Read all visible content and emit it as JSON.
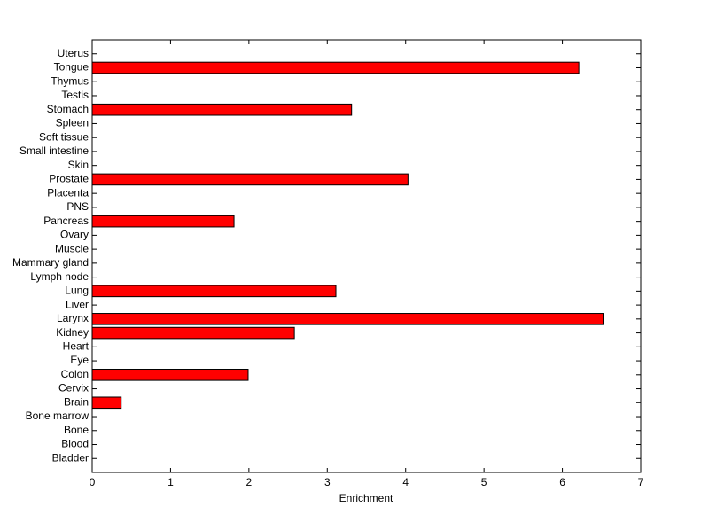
{
  "chart_data": {
    "type": "barh",
    "xlabel": "Enrichment",
    "categories": [
      "Bladder",
      "Blood",
      "Bone",
      "Bone marrow",
      "Brain",
      "Cervix",
      "Colon",
      "Eye",
      "Heart",
      "Kidney",
      "Larynx",
      "Liver",
      "Lung",
      "Lymph node",
      "Mammary gland",
      "Muscle",
      "Ovary",
      "Pancreas",
      "PNS",
      "Placenta",
      "Prostate",
      "Skin",
      "Small intestine",
      "Soft tissue",
      "Spleen",
      "Stomach",
      "Testis",
      "Thymus",
      "Tongue",
      "Uterus"
    ],
    "values": [
      0,
      0,
      0,
      0,
      0.37,
      0,
      1.99,
      0,
      0,
      2.58,
      6.52,
      0,
      3.11,
      0,
      0,
      0,
      0,
      1.81,
      0,
      0,
      4.03,
      0,
      0,
      0,
      0,
      3.31,
      0,
      0,
      6.21,
      0
    ],
    "color": "#ff0000",
    "xlim": [
      0,
      7
    ],
    "xticks": [
      0,
      1,
      2,
      3,
      4,
      5,
      6,
      7
    ]
  }
}
